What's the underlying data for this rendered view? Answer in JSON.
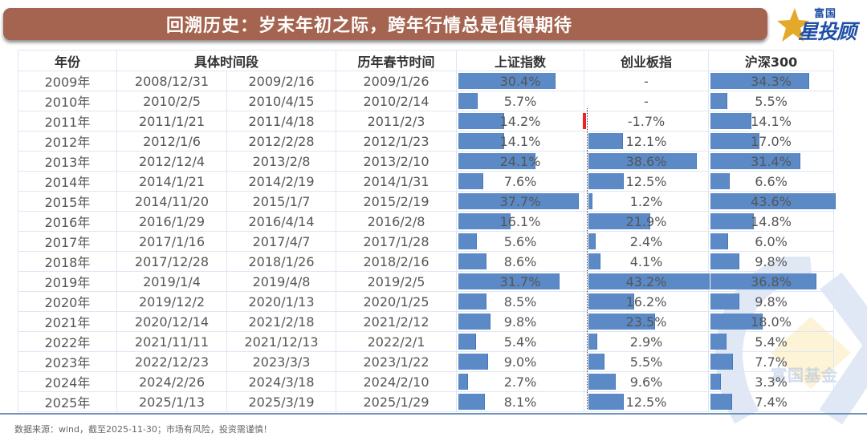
{
  "header": {
    "title": "回溯历史：岁末年初之际，跨年行情总是值得期待",
    "logo_small": "富国",
    "logo_big": "星投顾",
    "watermark": "富国基金"
  },
  "table": {
    "headers": [
      "年份",
      "具体时间段",
      "历年春节时间",
      "上证指数",
      "创业板指",
      "沪深300"
    ],
    "rows": [
      {
        "year": "2009年",
        "start": "2008/12/31",
        "end": "2009/2/16",
        "spring": "2009/1/26",
        "sse": "30.4%",
        "chinext": "-",
        "csi300": "34.3%"
      },
      {
        "year": "2010年",
        "start": "2010/2/5",
        "end": "2010/4/15",
        "spring": "2010/2/14",
        "sse": "5.7%",
        "chinext": "-",
        "csi300": "5.5%"
      },
      {
        "year": "2011年",
        "start": "2011/1/21",
        "end": "2011/4/18",
        "spring": "2011/2/3",
        "sse": "14.2%",
        "chinext": "-1.7%",
        "csi300": "14.1%"
      },
      {
        "year": "2012年",
        "start": "2012/1/6",
        "end": "2012/2/28",
        "spring": "2012/1/23",
        "sse": "14.1%",
        "chinext": "12.1%",
        "csi300": "17.0%"
      },
      {
        "year": "2013年",
        "start": "2012/12/4",
        "end": "2013/2/8",
        "spring": "2013/2/10",
        "sse": "24.1%",
        "chinext": "38.6%",
        "csi300": "31.4%"
      },
      {
        "year": "2014年",
        "start": "2014/1/21",
        "end": "2014/2/19",
        "spring": "2014/1/31",
        "sse": "7.6%",
        "chinext": "12.5%",
        "csi300": "6.6%"
      },
      {
        "year": "2015年",
        "start": "2014/11/20",
        "end": "2015/1/7",
        "spring": "2015/2/19",
        "sse": "37.7%",
        "chinext": "1.2%",
        "csi300": "43.6%"
      },
      {
        "year": "2016年",
        "start": "2016/1/29",
        "end": "2016/4/14",
        "spring": "2016/2/8",
        "sse": "16.1%",
        "chinext": "21.9%",
        "csi300": "14.8%"
      },
      {
        "year": "2017年",
        "start": "2017/1/16",
        "end": "2017/4/7",
        "spring": "2017/1/28",
        "sse": "5.6%",
        "chinext": "2.4%",
        "csi300": "6.0%"
      },
      {
        "year": "2018年",
        "start": "2017/12/28",
        "end": "2018/1/26",
        "spring": "2018/2/16",
        "sse": "8.6%",
        "chinext": "4.1%",
        "csi300": "9.8%"
      },
      {
        "year": "2019年",
        "start": "2019/1/4",
        "end": "2019/4/8",
        "spring": "2019/2/5",
        "sse": "31.7%",
        "chinext": "43.2%",
        "csi300": "36.8%"
      },
      {
        "year": "2020年",
        "start": "2019/12/2",
        "end": "2020/1/13",
        "spring": "2020/1/25",
        "sse": "8.5%",
        "chinext": "16.2%",
        "csi300": "9.8%"
      },
      {
        "year": "2021年",
        "start": "2020/12/14",
        "end": "2021/2/18",
        "spring": "2021/2/12",
        "sse": "9.8%",
        "chinext": "23.5%",
        "csi300": "18.0%"
      },
      {
        "year": "2022年",
        "start": "2021/11/11",
        "end": "2021/12/13",
        "spring": "2022/2/1",
        "sse": "5.4%",
        "chinext": "2.9%",
        "csi300": "5.4%"
      },
      {
        "year": "2023年",
        "start": "2022/12/23",
        "end": "2023/3/3",
        "spring": "2023/1/22",
        "sse": "9.0%",
        "chinext": "5.5%",
        "csi300": "7.7%"
      },
      {
        "year": "2024年",
        "start": "2024/2/26",
        "end": "2024/3/18",
        "spring": "2024/2/10",
        "sse": "2.7%",
        "chinext": "9.6%",
        "csi300": "3.3%"
      },
      {
        "year": "2025年",
        "start": "2025/1/13",
        "end": "2025/3/19",
        "spring": "2025/1/29",
        "sse": "8.1%",
        "chinext": "12.5%",
        "csi300": "7.4%"
      }
    ]
  },
  "footer": {
    "note": "数据来源：wind，截至2025-11-30；市场有风险，投资需谨慎！"
  },
  "colors": {
    "title_bg": "#a5644f",
    "bar_positive": "#5b8ac6",
    "bar_negative": "#ee2222",
    "grid_line": "#dfe6f3",
    "logo_blue": "#1f4fa5",
    "logo_gold": "#e3a92a"
  },
  "chart_data": {
    "type": "table",
    "title": "回溯历史：岁末年初之际，跨年行情总是值得期待",
    "columns": [
      "年份",
      "具体时间段-起",
      "具体时间段-止",
      "历年春节时间",
      "上证指数",
      "创业板指",
      "沪深300"
    ],
    "categories": [
      "2009年",
      "2010年",
      "2011年",
      "2012年",
      "2013年",
      "2014年",
      "2015年",
      "2016年",
      "2017年",
      "2018年",
      "2019年",
      "2020年",
      "2021年",
      "2022年",
      "2023年",
      "2024年",
      "2025年"
    ],
    "series": [
      {
        "name": "上证指数",
        "values": [
          30.4,
          5.7,
          14.2,
          14.1,
          24.1,
          7.6,
          37.7,
          16.1,
          5.6,
          8.6,
          31.7,
          8.5,
          9.8,
          5.4,
          9.0,
          2.7,
          8.1
        ]
      },
      {
        "name": "创业板指",
        "values": [
          null,
          null,
          -1.7,
          12.1,
          38.6,
          12.5,
          1.2,
          21.9,
          2.4,
          4.1,
          43.2,
          16.2,
          23.5,
          2.9,
          5.5,
          9.6,
          12.5
        ]
      },
      {
        "name": "沪深300",
        "values": [
          34.3,
          5.5,
          14.1,
          17.0,
          31.4,
          6.6,
          43.6,
          14.8,
          6.0,
          9.8,
          36.8,
          9.8,
          18.0,
          5.4,
          7.7,
          3.3,
          7.4
        ]
      }
    ],
    "unit": "%",
    "render": "in-cell data bars (blue positive, red negative)",
    "source_note": "数据来源：wind，截至2025-11-30；市场有风险，投资需谨慎！"
  }
}
